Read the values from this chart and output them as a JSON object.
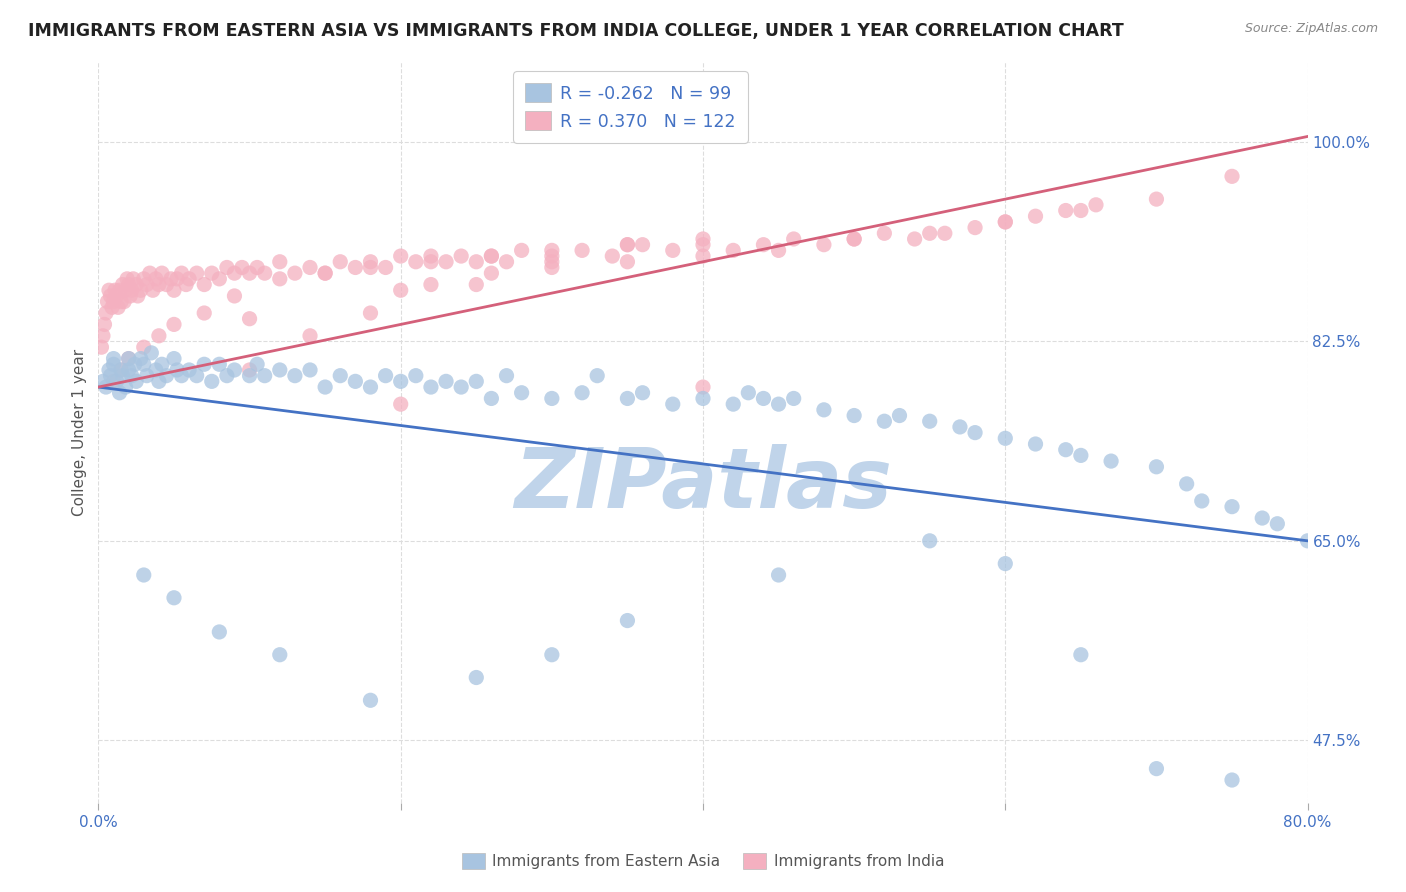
{
  "title": "IMMIGRANTS FROM EASTERN ASIA VS IMMIGRANTS FROM INDIA COLLEGE, UNDER 1 YEAR CORRELATION CHART",
  "source": "Source: ZipAtlas.com",
  "xlabel": "",
  "ylabel": "College, Under 1 year",
  "xlim": [
    0.0,
    80.0
  ],
  "ylim": [
    42.0,
    107.0
  ],
  "xticks": [
    0.0,
    20.0,
    40.0,
    60.0,
    80.0
  ],
  "xticklabels": [
    "0.0%",
    "",
    "",
    "",
    "80.0%"
  ],
  "yticks": [
    47.5,
    65.0,
    82.5,
    100.0
  ],
  "yticklabels": [
    "47.5%",
    "65.0%",
    "82.5%",
    "100.0%"
  ],
  "series": [
    {
      "label": "Immigrants from Eastern Asia",
      "R": -0.262,
      "N": 99,
      "color": "#a8c4e0",
      "trend_color": "#4472c4",
      "scatter_x": [
        0.3,
        0.5,
        0.7,
        0.8,
        1.0,
        1.0,
        1.2,
        1.4,
        1.5,
        1.6,
        1.8,
        2.0,
        2.0,
        2.2,
        2.4,
        2.5,
        2.8,
        3.0,
        3.2,
        3.5,
        3.8,
        4.0,
        4.2,
        4.5,
        5.0,
        5.2,
        5.5,
        6.0,
        6.5,
        7.0,
        7.5,
        8.0,
        8.5,
        9.0,
        10.0,
        10.5,
        11.0,
        12.0,
        13.0,
        14.0,
        15.0,
        16.0,
        17.0,
        18.0,
        19.0,
        20.0,
        21.0,
        22.0,
        23.0,
        24.0,
        25.0,
        26.0,
        27.0,
        28.0,
        30.0,
        32.0,
        33.0,
        35.0,
        36.0,
        38.0,
        40.0,
        42.0,
        43.0,
        44.0,
        45.0,
        46.0,
        48.0,
        50.0,
        52.0,
        53.0,
        55.0,
        57.0,
        58.0,
        60.0,
        62.0,
        64.0,
        65.0,
        67.0,
        70.0,
        72.0,
        73.0,
        75.0,
        77.0,
        78.0,
        80.0,
        3.0,
        5.0,
        8.0,
        12.0,
        18.0,
        25.0,
        30.0,
        35.0,
        45.0,
        55.0,
        60.0,
        65.0,
        70.0,
        75.0
      ],
      "scatter_y": [
        79.0,
        78.5,
        80.0,
        79.5,
        80.5,
        81.0,
        79.0,
        78.0,
        80.0,
        79.5,
        78.5,
        81.0,
        80.0,
        79.5,
        80.5,
        79.0,
        81.0,
        80.5,
        79.5,
        81.5,
        80.0,
        79.0,
        80.5,
        79.5,
        81.0,
        80.0,
        79.5,
        80.0,
        79.5,
        80.5,
        79.0,
        80.5,
        79.5,
        80.0,
        79.5,
        80.5,
        79.5,
        80.0,
        79.5,
        80.0,
        78.5,
        79.5,
        79.0,
        78.5,
        79.5,
        79.0,
        79.5,
        78.5,
        79.0,
        78.5,
        79.0,
        77.5,
        79.5,
        78.0,
        77.5,
        78.0,
        79.5,
        77.5,
        78.0,
        77.0,
        77.5,
        77.0,
        78.0,
        77.5,
        77.0,
        77.5,
        76.5,
        76.0,
        75.5,
        76.0,
        75.5,
        75.0,
        74.5,
        74.0,
        73.5,
        73.0,
        72.5,
        72.0,
        71.5,
        70.0,
        68.5,
        68.0,
        67.0,
        66.5,
        65.0,
        62.0,
        60.0,
        57.0,
        55.0,
        51.0,
        53.0,
        55.0,
        58.0,
        62.0,
        65.0,
        63.0,
        55.0,
        45.0,
        44.0
      ],
      "trend_x": [
        0.0,
        80.0
      ],
      "trend_y": [
        78.5,
        65.0
      ]
    },
    {
      "label": "Immigrants from India",
      "R": 0.37,
      "N": 122,
      "color": "#f4b0c0",
      "trend_color": "#d4607a",
      "scatter_x": [
        0.2,
        0.3,
        0.4,
        0.5,
        0.6,
        0.7,
        0.8,
        0.9,
        1.0,
        1.1,
        1.2,
        1.3,
        1.4,
        1.5,
        1.6,
        1.7,
        1.8,
        1.9,
        2.0,
        2.1,
        2.2,
        2.3,
        2.5,
        2.6,
        2.8,
        3.0,
        3.2,
        3.4,
        3.6,
        3.8,
        4.0,
        4.2,
        4.5,
        4.8,
        5.0,
        5.2,
        5.5,
        5.8,
        6.0,
        6.5,
        7.0,
        7.5,
        8.0,
        8.5,
        9.0,
        9.5,
        10.0,
        10.5,
        11.0,
        12.0,
        13.0,
        14.0,
        15.0,
        16.0,
        17.0,
        18.0,
        19.0,
        20.0,
        21.0,
        22.0,
        23.0,
        24.0,
        25.0,
        26.0,
        27.0,
        28.0,
        30.0,
        32.0,
        34.0,
        36.0,
        38.0,
        40.0,
        42.0,
        44.0,
        46.0,
        48.0,
        50.0,
        52.0,
        54.0,
        56.0,
        58.0,
        60.0,
        62.0,
        64.0,
        66.0,
        1.0,
        1.5,
        2.0,
        3.0,
        4.0,
        5.0,
        7.0,
        9.0,
        12.0,
        15.0,
        18.0,
        22.0,
        26.0,
        30.0,
        35.0,
        10.0,
        14.0,
        18.0,
        22.0,
        26.0,
        30.0,
        35.0,
        40.0,
        10.0,
        20.0,
        25.0,
        30.0,
        35.0,
        40.0,
        45.0,
        50.0,
        55.0,
        60.0,
        65.0,
        70.0,
        75.0,
        20.0,
        40.0
      ],
      "scatter_y": [
        82.0,
        83.0,
        84.0,
        85.0,
        86.0,
        87.0,
        86.5,
        85.5,
        86.0,
        87.0,
        86.5,
        85.5,
        87.0,
        86.0,
        87.5,
        86.0,
        87.0,
        88.0,
        87.5,
        86.5,
        87.0,
        88.0,
        87.5,
        86.5,
        87.0,
        88.0,
        87.5,
        88.5,
        87.0,
        88.0,
        87.5,
        88.5,
        87.5,
        88.0,
        87.0,
        88.0,
        88.5,
        87.5,
        88.0,
        88.5,
        87.5,
        88.5,
        88.0,
        89.0,
        88.5,
        89.0,
        88.5,
        89.0,
        88.5,
        89.5,
        88.5,
        89.0,
        88.5,
        89.5,
        89.0,
        89.5,
        89.0,
        90.0,
        89.5,
        90.0,
        89.5,
        90.0,
        89.5,
        90.0,
        89.5,
        90.5,
        90.0,
        90.5,
        90.0,
        91.0,
        90.5,
        91.0,
        90.5,
        91.0,
        91.5,
        91.0,
        91.5,
        92.0,
        91.5,
        92.0,
        92.5,
        93.0,
        93.5,
        94.0,
        94.5,
        79.0,
        80.0,
        81.0,
        82.0,
        83.0,
        84.0,
        85.0,
        86.5,
        88.0,
        88.5,
        89.0,
        89.5,
        90.0,
        90.5,
        91.0,
        80.0,
        83.0,
        85.0,
        87.5,
        88.5,
        89.5,
        91.0,
        91.5,
        84.5,
        87.0,
        87.5,
        89.0,
        89.5,
        90.0,
        90.5,
        91.5,
        92.0,
        93.0,
        94.0,
        95.0,
        97.0,
        77.0,
        78.5
      ],
      "trend_x": [
        0.0,
        80.0
      ],
      "trend_y": [
        78.5,
        100.5
      ]
    }
  ],
  "watermark": "ZIPatlas",
  "watermark_color": "#c0d4ea",
  "background_color": "#ffffff",
  "grid_color": "#dddddd",
  "title_fontsize": 12.5,
  "axis_label_fontsize": 11,
  "tick_fontsize": 11,
  "legend_fontsize": 12.5
}
